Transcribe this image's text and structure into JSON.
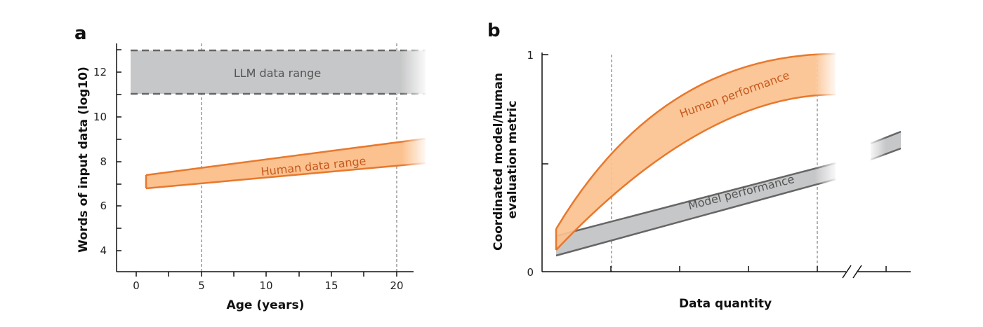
{
  "chart_data": [
    {
      "panel": "a",
      "type": "area",
      "xlabel": "Age (years)",
      "ylabel": "Words of input data (log10)",
      "xlim": [
        -1.5,
        21.5
      ],
      "ylim": [
        3.0,
        13.4
      ],
      "xticks": [
        0,
        5,
        10,
        15,
        20
      ],
      "yticks": [
        4,
        6,
        8,
        10,
        12
      ],
      "reference_lines_x": [
        5,
        20
      ],
      "series": [
        {
          "name": "LLM data range",
          "color": "#c6c7c8",
          "edge_color": "#666666",
          "x": [
            -0.5,
            22
          ],
          "lower": [
            11,
            11
          ],
          "upper": [
            13,
            13
          ]
        },
        {
          "name": "Human data range",
          "color": "#fbc18f",
          "edge_color": "#e8782c",
          "x": [
            0.8,
            22
          ],
          "lower": [
            6.8,
            7.9
          ],
          "upper": [
            7.35,
            9.0
          ]
        }
      ]
    },
    {
      "panel": "b",
      "type": "area",
      "xlabel": "Data quantity",
      "ylabel": "Coordinated model/human evaluation metric",
      "xlim": [
        0,
        1
      ],
      "ylim": [
        0,
        1
      ],
      "yticks": [
        0,
        1
      ],
      "reference_lines_x": [
        0.2,
        0.8
      ],
      "series": [
        {
          "name": "Human performance",
          "color": "#fbc18f",
          "edge_color": "#e8782c",
          "x": [
            0.04,
            0.2,
            0.8,
            0.86
          ],
          "lower": [
            0.1,
            0.37,
            0.82,
            0.82
          ],
          "upper": [
            0.2,
            0.56,
            1.0,
            1.0
          ]
        },
        {
          "name": "Model performance",
          "color": "#c6c7c8",
          "edge_color": "#666666",
          "x": [
            0.04,
            0.8,
            0.86
          ],
          "lower": [
            0.08,
            0.45,
            0.48
          ],
          "upper": [
            0.17,
            0.54,
            0.57
          ]
        }
      ]
    }
  ]
}
